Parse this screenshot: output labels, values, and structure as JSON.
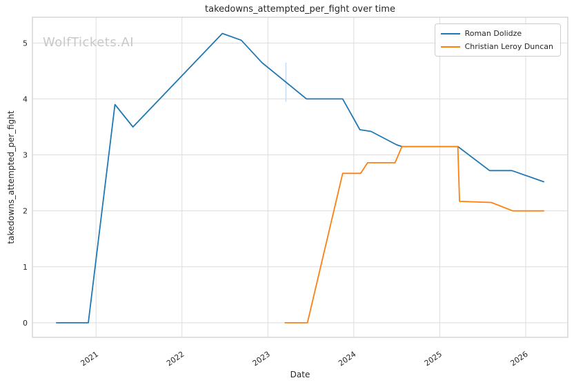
{
  "chart_data": {
    "type": "line",
    "title": "takedowns_attempted_per_fight over time",
    "xlabel": "Date",
    "ylabel": "takedowns_attempted_per_fight",
    "watermark": "WolfTickets.AI",
    "x_ticks": [
      2021,
      2022,
      2023,
      2024,
      2025,
      2026
    ],
    "y_ticks": [
      0,
      1,
      2,
      3,
      4,
      5
    ],
    "xlim": [
      2020.26,
      2026.49
    ],
    "ylim": [
      -0.26,
      5.46
    ],
    "grid": true,
    "legend_position": "upper right",
    "colors": {
      "background": "#ffffff",
      "grid": "#dcdcdc",
      "spine": "#cccccc",
      "text": "#262626",
      "watermark": "#c6c8ca"
    },
    "series": [
      {
        "name": "Roman Dolidze",
        "color": "#1f77b4",
        "points": [
          [
            2020.54,
            0.0
          ],
          [
            2020.91,
            0.0
          ],
          [
            2021.22,
            3.9
          ],
          [
            2021.43,
            3.5
          ],
          [
            2022.47,
            5.17
          ],
          [
            2022.69,
            5.05
          ],
          [
            2022.93,
            4.65
          ],
          [
            2023.45,
            4.0
          ],
          [
            2023.87,
            4.0
          ],
          [
            2024.07,
            3.45
          ],
          [
            2024.2,
            3.42
          ],
          [
            2024.5,
            3.18
          ],
          [
            2024.56,
            3.15
          ],
          [
            2025.21,
            3.15
          ],
          [
            2025.58,
            2.72
          ],
          [
            2025.84,
            2.72
          ],
          [
            2026.21,
            2.52
          ]
        ]
      },
      {
        "name": "Christian Leroy Duncan",
        "color": "#ff7f0e",
        "points": [
          [
            2023.2,
            0.0
          ],
          [
            2023.46,
            0.0
          ],
          [
            2023.87,
            2.67
          ],
          [
            2024.08,
            2.67
          ],
          [
            2024.16,
            2.86
          ],
          [
            2024.48,
            2.86
          ],
          [
            2024.56,
            3.15
          ],
          [
            2025.21,
            3.15
          ],
          [
            2025.23,
            2.17
          ],
          [
            2025.6,
            2.15
          ],
          [
            2025.85,
            2.0
          ],
          [
            2026.21,
            2.0
          ]
        ]
      }
    ],
    "error_bar": {
      "x": 2023.21,
      "y_low": 3.95,
      "y_high": 4.65,
      "color": "#c5dcf0"
    }
  }
}
